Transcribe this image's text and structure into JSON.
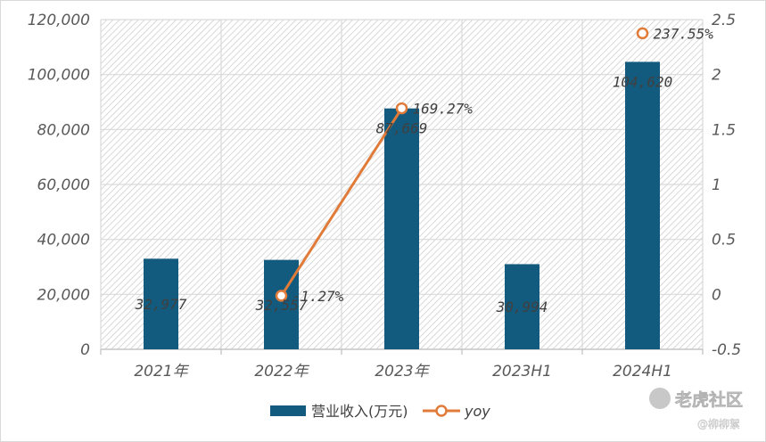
{
  "chart_data": {
    "type": "bar",
    "categories": [
      "2021年",
      "2022年",
      "2023年",
      "2023H1",
      "2024H1"
    ],
    "series": [
      {
        "name": "营业收入(万元)",
        "type": "bar",
        "axis": "left",
        "color": "#135b7e",
        "values": [
          32977,
          32557,
          87669,
          30994,
          104620
        ],
        "labels": [
          "32,977",
          "32,557",
          "87,669",
          "30,994",
          "104,620"
        ]
      },
      {
        "name": "yoy",
        "type": "line",
        "axis": "right",
        "color": "#e07b39",
        "points": [
          {
            "category": "2022年",
            "value": -0.0127,
            "label": "-1.27%"
          },
          {
            "category": "2023年",
            "value": 1.6927,
            "label": "169.27%"
          },
          {
            "category": "2024H1",
            "value": 2.3755,
            "label": "237.55%"
          }
        ]
      }
    ],
    "y_left": {
      "min": 0,
      "max": 120000,
      "ticks": [
        "0",
        "20,000",
        "40,000",
        "60,000",
        "80,000",
        "100,000",
        "120,000"
      ]
    },
    "y_right": {
      "min": -0.5,
      "max": 2.5,
      "ticks": [
        "-0.5",
        "0",
        "0.5",
        "1",
        "1.5",
        "2",
        "2.5"
      ]
    },
    "grid": true,
    "legend": "bottom"
  },
  "watermark": {
    "brand": "老虎社区",
    "user": "@柳柳絮"
  }
}
